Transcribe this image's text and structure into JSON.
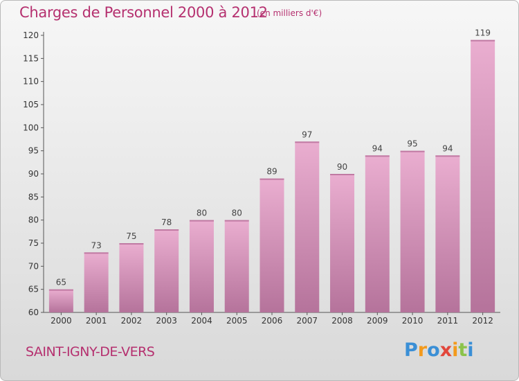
{
  "title": "Charges de Personnel 2000 à 2012",
  "unit_note": "(en milliers d'€)",
  "commune": "SAINT-IGNY-DE-VERS",
  "brand": {
    "letters": [
      "P",
      "r",
      "o",
      "x",
      "i",
      "t",
      "i"
    ],
    "colors": [
      "#3a8fd6",
      "#f39a1c",
      "#3a8fd6",
      "#e2463b",
      "#f39a1c",
      "#8bc34a",
      "#3a8fd6"
    ]
  },
  "colors": {
    "bar_top": "#eaaed0",
    "bar_bottom": "#b5739b",
    "title": "#b5306f"
  },
  "chart_data": {
    "type": "bar",
    "categories": [
      "2000",
      "2001",
      "2002",
      "2003",
      "2004",
      "2005",
      "2006",
      "2007",
      "2008",
      "2009",
      "2010",
      "2011",
      "2012"
    ],
    "values": [
      65,
      73,
      75,
      78,
      80,
      80,
      89,
      97,
      90,
      94,
      95,
      94,
      119
    ],
    "data_labels": [
      "65",
      "73",
      "75",
      "78",
      "80",
      "80",
      "89",
      "97",
      "90",
      "94",
      "95",
      "94",
      "119"
    ],
    "ylim": [
      60,
      122
    ],
    "yticks": [
      60,
      65,
      70,
      75,
      80,
      85,
      90,
      95,
      100,
      105,
      110,
      115,
      120
    ],
    "grid": false,
    "legend": "none"
  }
}
